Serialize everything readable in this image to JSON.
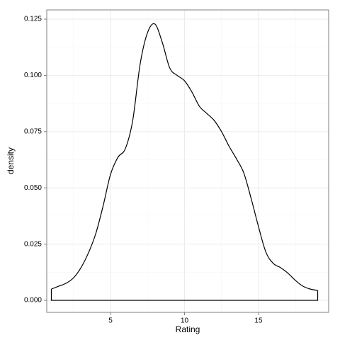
{
  "chart_data": {
    "type": "density",
    "x_label": "Rating",
    "y_label": "density",
    "x": [
      1,
      1.5,
      2,
      2.5,
      3,
      3.5,
      4,
      4.5,
      5,
      5.5,
      6,
      6.5,
      7,
      7.5,
      8,
      8.5,
      9,
      9.5,
      10,
      10.5,
      11,
      11.5,
      12,
      12.5,
      13,
      13.5,
      14,
      14.5,
      15,
      15.5,
      16,
      16.5,
      17,
      17.5,
      18,
      18.5,
      19
    ],
    "values": [
      0.005,
      0.0063,
      0.0076,
      0.01,
      0.0145,
      0.021,
      0.0296,
      0.042,
      0.056,
      0.0636,
      0.0674,
      0.08,
      0.105,
      0.119,
      0.1228,
      0.1146,
      0.1033,
      0.1,
      0.0976,
      0.0926,
      0.0863,
      0.0831,
      0.08,
      0.075,
      0.0686,
      0.063,
      0.0567,
      0.0453,
      0.0327,
      0.0214,
      0.0164,
      0.0145,
      0.012,
      0.0088,
      0.0063,
      0.005,
      0.0044
    ],
    "color": "#000000",
    "xlim": [
      0.69,
      19.74
    ],
    "ylim": [
      -0.00535,
      0.1291
    ],
    "xticks": [
      5,
      10,
      15
    ],
    "yticks": [
      {
        "value": 0,
        "label": "0.000"
      },
      0.025,
      {
        "value": 0.05,
        "label": "0.050"
      },
      0.075,
      {
        "value": 0.1,
        "label": "0.100"
      },
      0.125
    ],
    "grid": true
  }
}
